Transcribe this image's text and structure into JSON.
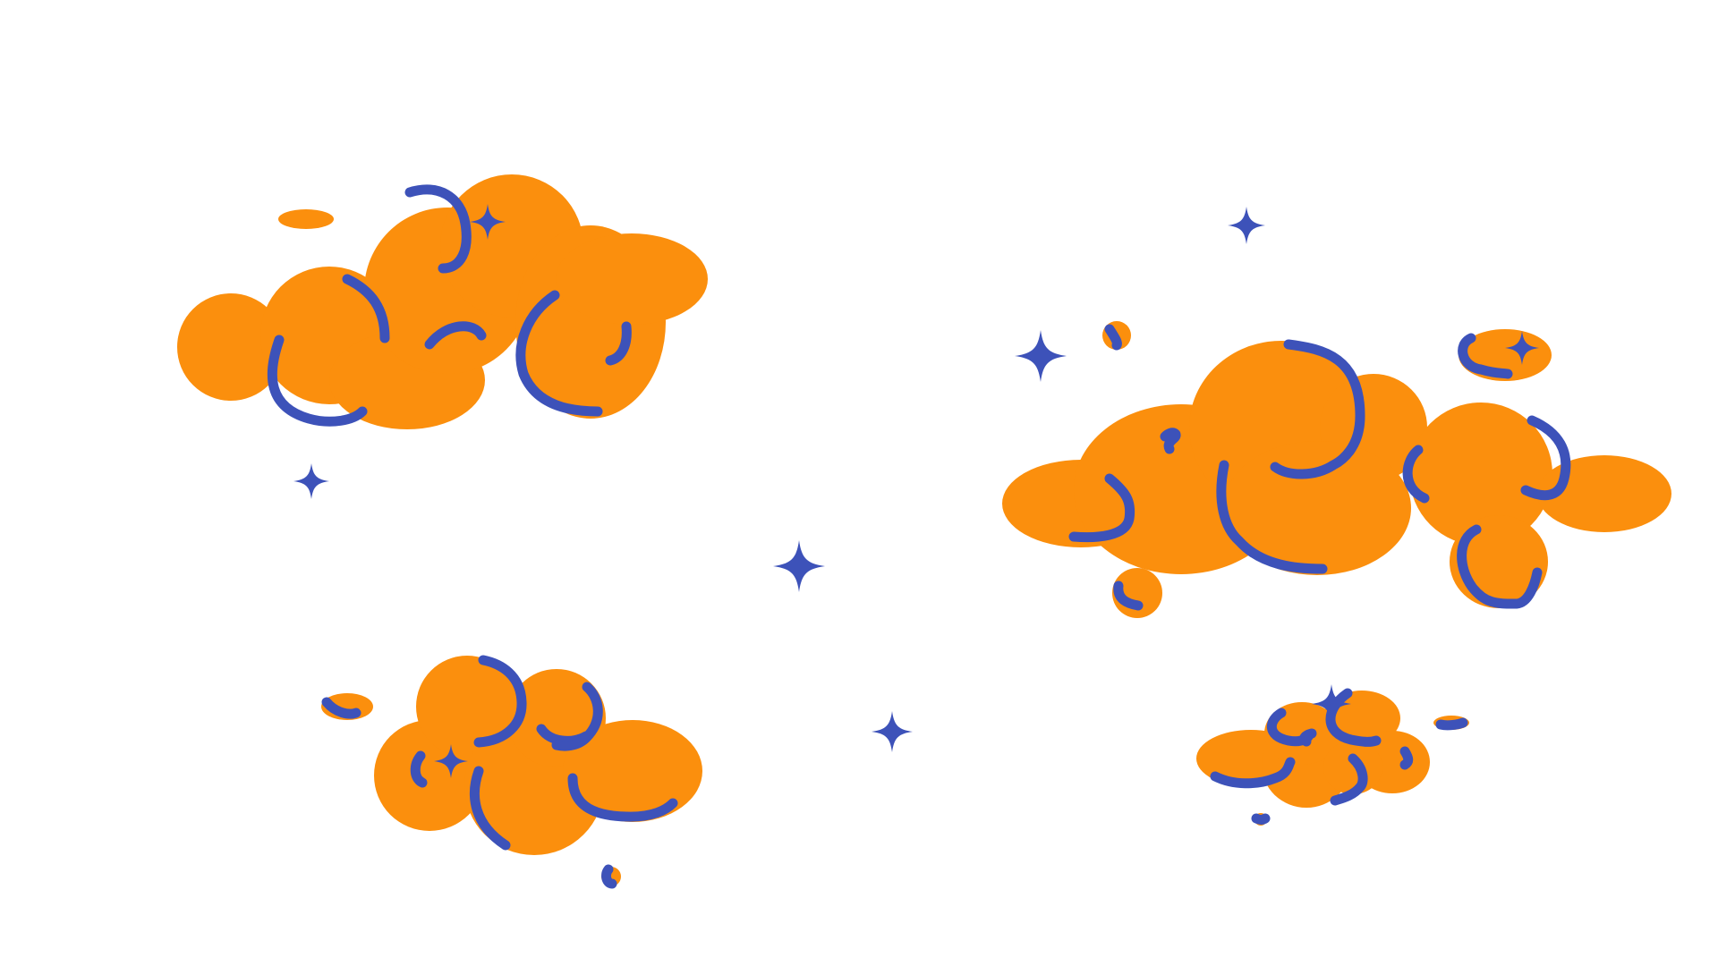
{
  "colors": {
    "background": "#ffffff",
    "cloud_fill": "#fb8f0d",
    "swirl_stroke": "#3d52b9",
    "sparkle_fill": "#3d52b9"
  },
  "scene": {
    "clouds": [
      {
        "name": "cloud-top-left"
      },
      {
        "name": "cloud-right"
      },
      {
        "name": "cloud-bottom-left"
      },
      {
        "name": "cloud-bottom-right"
      }
    ],
    "sparkle_icon": "four-point-star-icon"
  }
}
